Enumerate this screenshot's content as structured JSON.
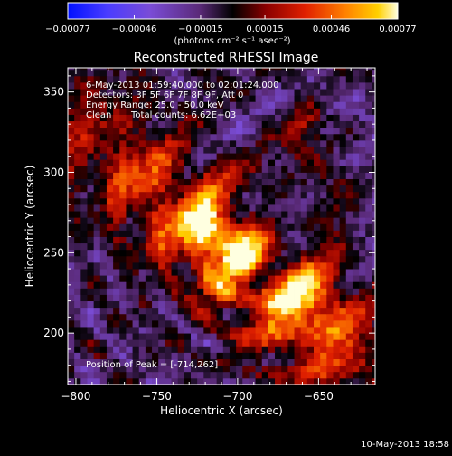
{
  "chart_data": {
    "type": "heatmap",
    "title": "Reconstructed RHESSI Image",
    "xlabel": "Heliocentric X (arcsec)",
    "ylabel": "Heliocentric Y (arcsec)",
    "xlim": [
      -805,
      -615
    ],
    "ylim": [
      168,
      365
    ],
    "x_ticks": [
      -800,
      -750,
      -700,
      -650
    ],
    "x_tick_labels": [
      "−800",
      "−750",
      "−700",
      "−650"
    ],
    "y_ticks": [
      200,
      250,
      300,
      350
    ],
    "y_tick_labels": [
      "200",
      "250",
      "300",
      "350"
    ],
    "colorbar": {
      "min": -0.00077,
      "max": 0.00077,
      "ticks": [
        -0.00077,
        -0.00046,
        -0.00015,
        0.00015,
        0.00046,
        0.00077
      ],
      "tick_labels": [
        "−0.00077",
        "−0.00046",
        "−0.00015",
        "0.00015",
        "0.00046",
        "0.00077"
      ],
      "units_label": "(photons cm⁻² s⁻¹ asec⁻²)",
      "colormap": "rhessi-fire"
    },
    "annotations": {
      "time_range": "6-May-2013 01:59:40.000 to 02:01:24.000",
      "detectors": "Detectors: 3F 5F 6F 7F 8F 9F, Att 0",
      "energy_range": "Energy Range: 25.0 - 50.0 keV",
      "method": "Clean",
      "total_counts": "Total counts: 6.62E+03",
      "peak_position": "Position of Peak = [-714,262]"
    },
    "peak": {
      "x": -714,
      "y": 262
    },
    "heatmap": {
      "x_start": -805,
      "y_start": 168,
      "cell_arcsec": 4,
      "cols": 48,
      "rows": 50,
      "pattern": "bright diagonal band from lower-right to upper-left with ripple sidelobes; secondary source near upper-right"
    }
  },
  "footer": {
    "date": "10-May-2013 18:58"
  },
  "colors": {
    "background": "#000000",
    "foreground": "#ffffff"
  }
}
